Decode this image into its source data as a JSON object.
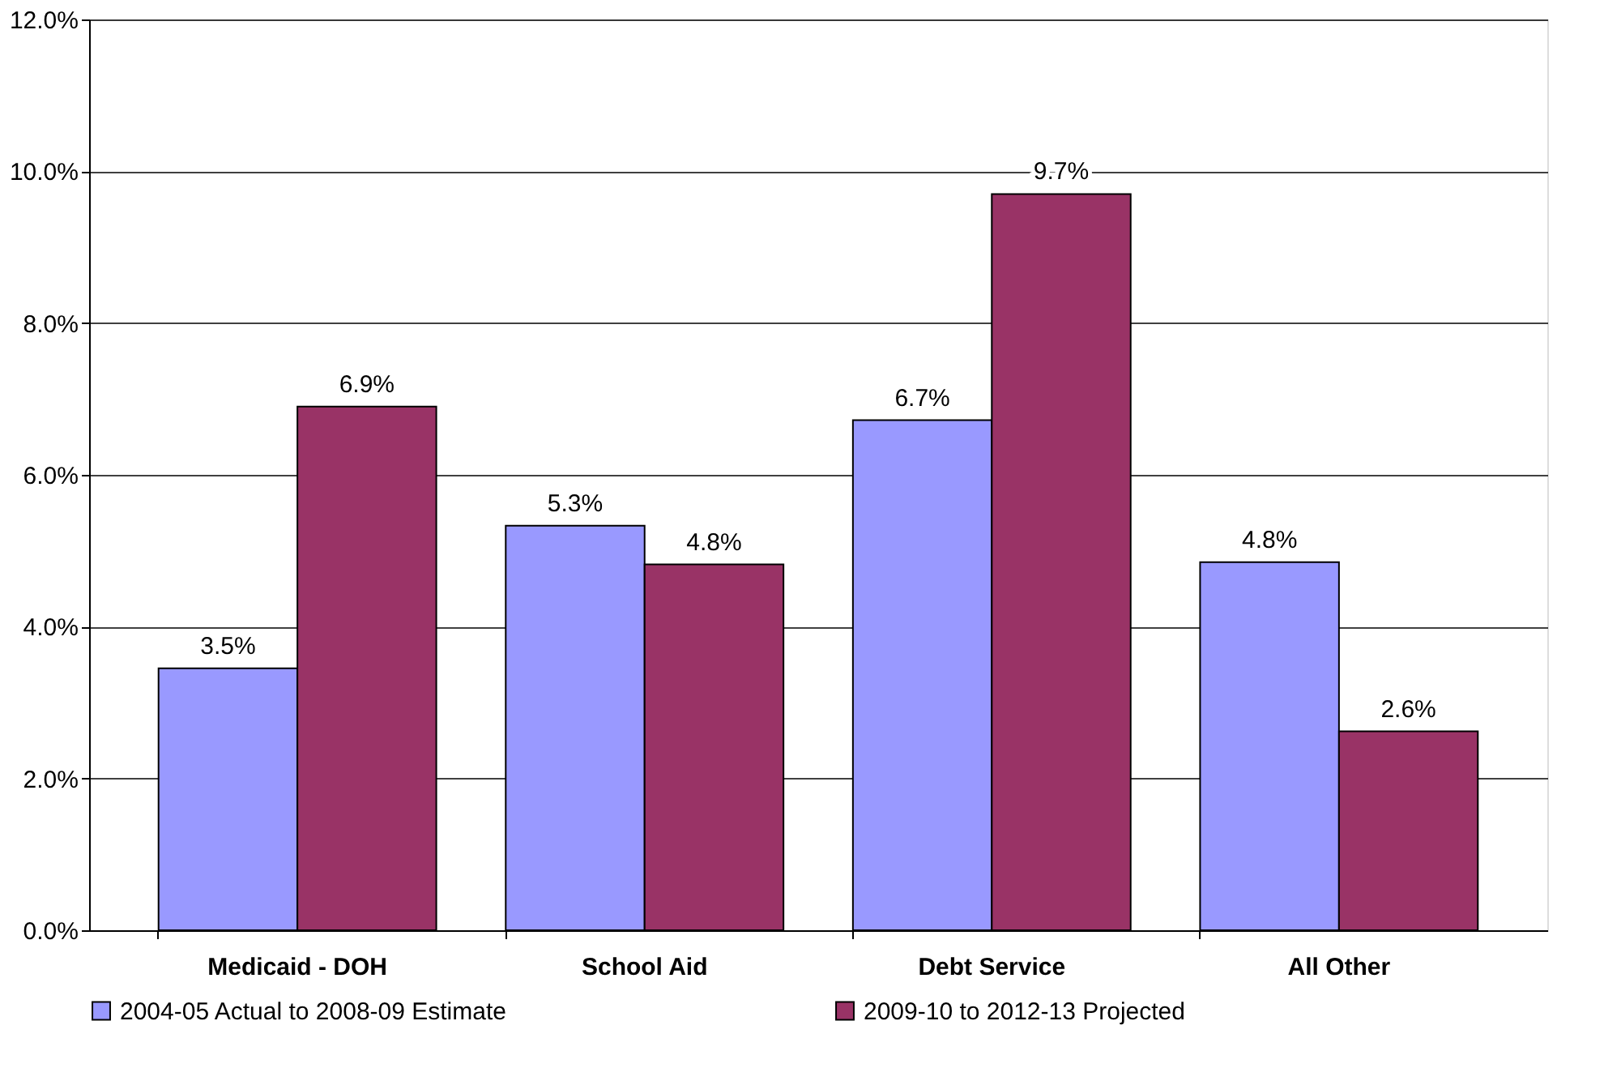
{
  "chart_data": {
    "type": "bar",
    "categories": [
      "Medicaid - DOH",
      "School Aid",
      "Debt Service",
      "All Other"
    ],
    "series": [
      {
        "name": "2004-05 Actual to 2008-09 Estimate",
        "color": "#9999ff",
        "values": [
          3.45,
          5.33,
          6.72,
          4.85
        ],
        "value_labels": [
          "3.5%",
          "5.3%",
          "6.7%",
          "4.8%"
        ]
      },
      {
        "name": "2009-10 to 2012-13 Projected",
        "color": "#993366",
        "values": [
          6.9,
          4.82,
          9.7,
          2.62
        ],
        "value_labels": [
          "6.9%",
          "4.8%",
          "9.7%",
          "2.6%"
        ]
      }
    ],
    "ylim": [
      0,
      12
    ],
    "yticks": [
      {
        "value": 0,
        "label": "0.0%"
      },
      {
        "value": 2,
        "label": "2.0%"
      },
      {
        "value": 4,
        "label": "4.0%"
      },
      {
        "value": 6,
        "label": "6.0%"
      },
      {
        "value": 8,
        "label": "8.0%"
      },
      {
        "value": 10,
        "label": "10.0%"
      },
      {
        "value": 12,
        "label": "12.0%"
      }
    ],
    "grid": "y",
    "legend": "bottom"
  }
}
